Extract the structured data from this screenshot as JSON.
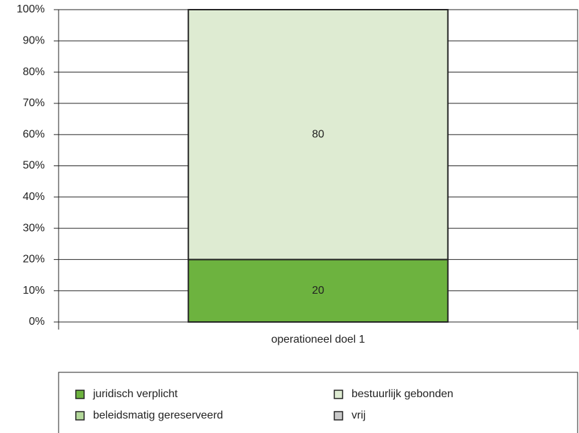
{
  "chart_data": {
    "type": "stacked_bar",
    "categories": [
      "operationeel doel 1"
    ],
    "series": [
      {
        "name": "juridisch verplicht",
        "color": "#6db33f",
        "values": [
          20
        ]
      },
      {
        "name": "beleidsmatig gereserveerd",
        "color": "#b3d89a",
        "values": [
          0
        ]
      },
      {
        "name": "bestuurlijk gebonden",
        "color": "#deebd2",
        "values": [
          80
        ]
      },
      {
        "name": "vrij",
        "color": "#c9c9c9",
        "values": [
          0
        ]
      }
    ],
    "ylim": [
      0,
      100
    ],
    "yticks": [
      {
        "value": 0,
        "label": "0%"
      },
      {
        "value": 10,
        "label": "10%"
      },
      {
        "value": 20,
        "label": "20%"
      },
      {
        "value": 30,
        "label": "30%"
      },
      {
        "value": 40,
        "label": "40%"
      },
      {
        "value": 50,
        "label": "50%"
      },
      {
        "value": 60,
        "label": "60%"
      },
      {
        "value": 70,
        "label": "70%"
      },
      {
        "value": 80,
        "label": "80%"
      },
      {
        "value": 90,
        "label": "90%"
      },
      {
        "value": 100,
        "label": "100%"
      }
    ],
    "grid": true,
    "legend": "bottom"
  }
}
